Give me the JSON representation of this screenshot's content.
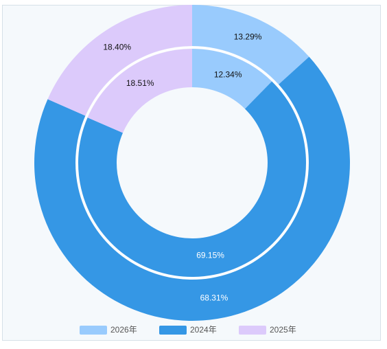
{
  "chart_data": {
    "type": "pie",
    "categories": [
      "2026年",
      "2024年",
      "2025年"
    ],
    "colors": [
      "#99cbfd",
      "#3597e5",
      "#dccafb"
    ],
    "series": [
      {
        "values": [
          13.29,
          68.31,
          18.4
        ],
        "value_labels": [
          "13.29%",
          "68.31%",
          "18.40%"
        ]
      },
      {
        "values": [
          12.34,
          69.15,
          18.51
        ],
        "value_labels": [
          "12.34%",
          "69.15%",
          "18.51%"
        ]
      }
    ],
    "legend": "bottom"
  }
}
